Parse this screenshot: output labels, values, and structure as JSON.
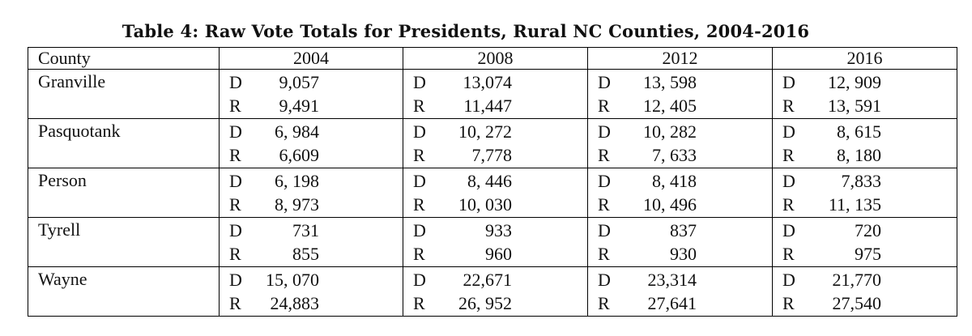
{
  "title": "Table 4: Raw Vote Totals for Presidents, Rural NC Counties, 2004-2016",
  "columns": [
    "County",
    "2004",
    "2008",
    "2012",
    "2016"
  ],
  "rows": [
    {
      "county": "Granville",
      "values": [
        [
          "D",
          "9,057",
          "R",
          "9,491"
        ],
        [
          "D",
          "13,074",
          "R",
          "11,447"
        ],
        [
          "D",
          "13, 598",
          "R",
          "12, 405"
        ],
        [
          "D",
          "12, 909",
          "R",
          "13, 591"
        ]
      ]
    },
    {
      "county": "Pasquotank",
      "values": [
        [
          "D",
          "6, 984",
          "R",
          "6,609"
        ],
        [
          "D",
          "10, 272",
          "R",
          "7,778"
        ],
        [
          "D",
          "10, 282",
          "R",
          "7, 633"
        ],
        [
          "D",
          "8, 615",
          "R",
          "8, 180"
        ]
      ]
    },
    {
      "county": "Person",
      "values": [
        [
          "D",
          "6, 198",
          "R",
          "8, 973"
        ],
        [
          "D",
          "8, 446",
          "R",
          "10, 030"
        ],
        [
          "D",
          "8, 418",
          "R",
          "10, 496"
        ],
        [
          "D",
          "7,833",
          "R",
          "11, 135"
        ]
      ]
    },
    {
      "county": "Tyrell",
      "values": [
        [
          "D",
          "731",
          "R",
          "855"
        ],
        [
          "D",
          "933",
          "R",
          "960"
        ],
        [
          "D",
          "837",
          "R",
          "930"
        ],
        [
          "D",
          "720",
          "R",
          "975"
        ]
      ]
    },
    {
      "county": "Wayne",
      "values": [
        [
          "D",
          "15, 070",
          "R",
          "24,883"
        ],
        [
          "D",
          "22,671",
          "R",
          "26, 952"
        ],
        [
          "D",
          "23,314",
          "R",
          "27,641"
        ],
        [
          "D",
          "21,770",
          "R",
          "27,540"
        ]
      ]
    }
  ]
}
